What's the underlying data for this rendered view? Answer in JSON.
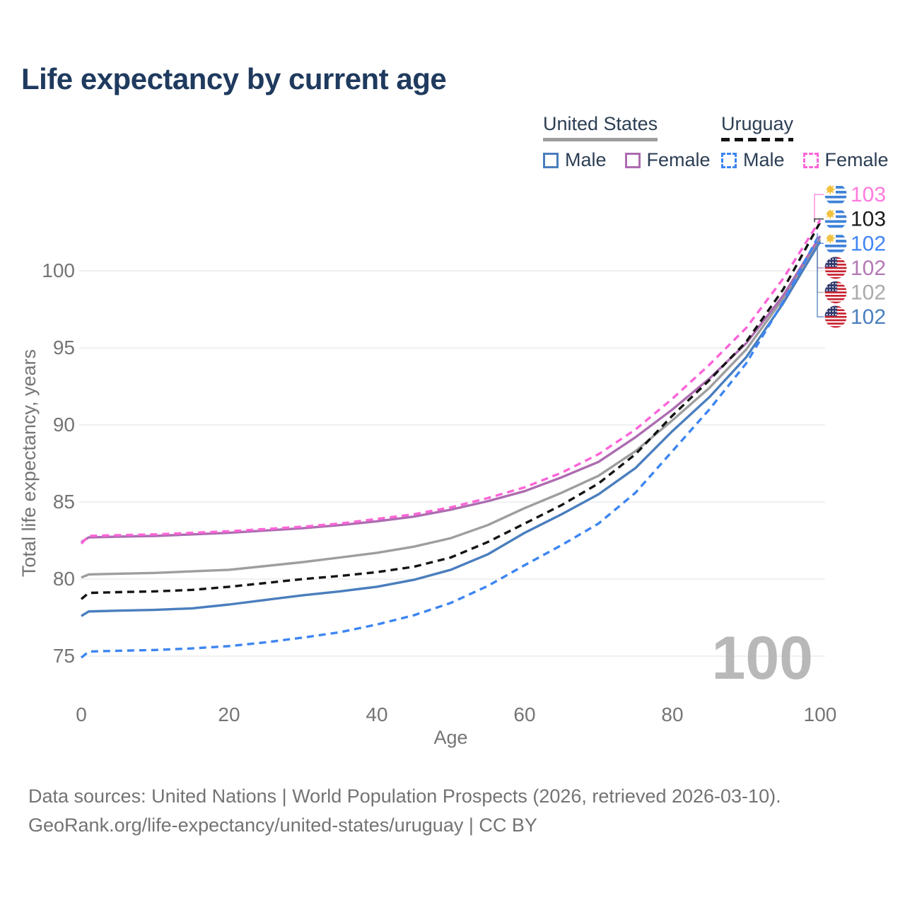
{
  "title": "Life expectancy by current age",
  "watermark": "100",
  "legend": {
    "groups": [
      {
        "label": "United States",
        "line_style": "solid",
        "line_color": "#9e9e9e",
        "items": [
          {
            "label": "Male",
            "color": "#4a7ebd",
            "dash": false
          },
          {
            "label": "Female",
            "color": "#ad6cb0",
            "dash": false
          }
        ]
      },
      {
        "label": "Uruguay",
        "line_style": "dashed",
        "line_color": "#141414",
        "items": [
          {
            "label": "Male",
            "color": "#3d85f2",
            "dash": true
          },
          {
            "label": "Female",
            "color": "#fc64d8",
            "dash": true
          }
        ]
      }
    ]
  },
  "chart_data": {
    "type": "line",
    "title": "Life expectancy by current age",
    "xlabel": "Age",
    "ylabel": "Total life expectancy, years",
    "xlim": [
      0,
      100
    ],
    "ylim": [
      73.5,
      104.5
    ],
    "xticks": [
      0,
      20,
      40,
      60,
      80,
      100
    ],
    "yticks": [
      75,
      80,
      85,
      90,
      95,
      100
    ],
    "grid": "horizontal",
    "legend_position": "top-right",
    "x": [
      0,
      1,
      5,
      10,
      15,
      20,
      25,
      30,
      35,
      40,
      45,
      50,
      55,
      60,
      65,
      70,
      75,
      80,
      85,
      90,
      95,
      100
    ],
    "series": [
      {
        "name": "United States",
        "sex": "Both",
        "color": "#9e9e9e",
        "dash": "solid",
        "values": [
          80.1,
          80.3,
          80.35,
          80.4,
          80.5,
          80.6,
          80.85,
          81.1,
          81.4,
          81.7,
          82.1,
          82.65,
          83.5,
          84.6,
          85.6,
          86.7,
          88.3,
          90.3,
          92.4,
          94.9,
          98.2,
          102.05
        ]
      },
      {
        "name": "United States Male",
        "sex": "Male",
        "color": "#4a7ebd",
        "dash": "solid",
        "values": [
          77.6,
          77.9,
          77.95,
          78.0,
          78.1,
          78.35,
          78.65,
          78.95,
          79.2,
          79.5,
          79.95,
          80.6,
          81.6,
          83.0,
          84.2,
          85.5,
          87.2,
          89.6,
          91.8,
          94.4,
          97.9,
          101.9
        ]
      },
      {
        "name": "United States Female",
        "sex": "Female",
        "color": "#ad6cb0",
        "dash": "solid",
        "values": [
          82.4,
          82.7,
          82.75,
          82.8,
          82.9,
          83.0,
          83.15,
          83.3,
          83.5,
          83.75,
          84.05,
          84.5,
          85.05,
          85.7,
          86.6,
          87.6,
          89.2,
          91.0,
          93.0,
          95.3,
          98.4,
          102.25
        ]
      },
      {
        "name": "Uruguay",
        "sex": "Both",
        "color": "#141414",
        "dash": "dashed",
        "values": [
          78.7,
          79.1,
          79.15,
          79.2,
          79.3,
          79.5,
          79.75,
          80.0,
          80.2,
          80.45,
          80.8,
          81.4,
          82.4,
          83.6,
          84.8,
          86.2,
          88.1,
          90.6,
          92.9,
          95.4,
          98.8,
          103.15
        ]
      },
      {
        "name": "Uruguay Male",
        "sex": "Male",
        "color": "#3d85f2",
        "dash": "dashed",
        "values": [
          74.9,
          75.3,
          75.35,
          75.4,
          75.5,
          75.65,
          75.9,
          76.2,
          76.55,
          77.05,
          77.65,
          78.45,
          79.55,
          80.9,
          82.2,
          83.6,
          85.6,
          88.3,
          91.0,
          94.0,
          98.0,
          102.45
        ]
      },
      {
        "name": "Uruguay Female",
        "sex": "Female",
        "color": "#fc64d8",
        "dash": "dashed",
        "values": [
          82.3,
          82.8,
          82.85,
          82.9,
          83.0,
          83.1,
          83.25,
          83.4,
          83.6,
          83.9,
          84.2,
          84.65,
          85.25,
          85.95,
          86.9,
          88.1,
          89.7,
          91.7,
          93.9,
          96.3,
          99.5,
          103.3
        ]
      }
    ],
    "end_labels": [
      {
        "series": 5,
        "text": "103",
        "color": "#ff7ade",
        "flag": "uruguay-flag-icon"
      },
      {
        "series": 3,
        "text": "103",
        "color": "#1a1a1a",
        "flag": "uruguay-flag-icon"
      },
      {
        "series": 4,
        "text": "102",
        "color": "#4285f4",
        "flag": "uruguay-flag-icon"
      },
      {
        "series": 2,
        "text": "102",
        "color": "#b478b6",
        "flag": "us-flag-icon"
      },
      {
        "series": 0,
        "text": "102",
        "color": "#aaaaaa",
        "flag": "us-flag-icon"
      },
      {
        "series": 1,
        "text": "102",
        "color": "#4a7ebd",
        "flag": "us-flag-icon"
      }
    ]
  },
  "footer": {
    "line1": "Data sources: United Nations | World Population Prospects (2026, retrieved 2026-03-10).",
    "line2": "GeoRank.org/life-expectancy/united-states/uruguay | CC BY"
  },
  "colors": {
    "title": "#1f3a5e",
    "axis_text": "#757575",
    "gridline": "#e7e7e7",
    "watermark": "#b8b8b8"
  }
}
